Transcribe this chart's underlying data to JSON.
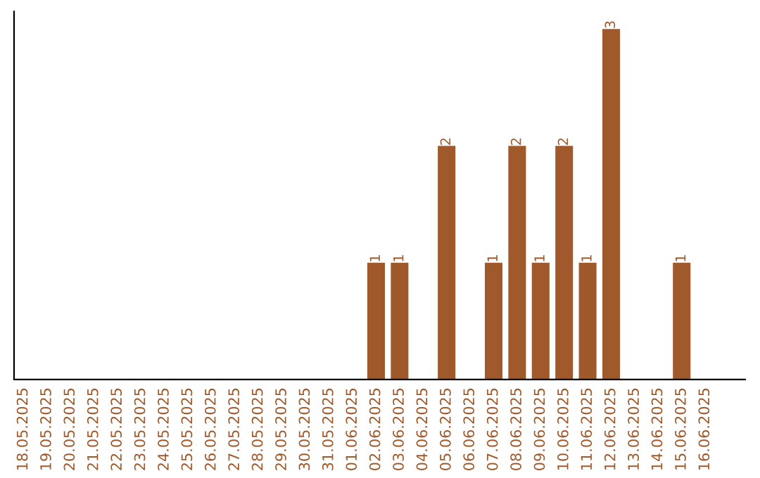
{
  "chart_data": {
    "type": "bar",
    "categories": [
      "18.05.2025",
      "19.05.2025",
      "20.05.2025",
      "21.05.2025",
      "22.05.2025",
      "23.05.2025",
      "24.05.2025",
      "25.05.2025",
      "26.05.2025",
      "27.05.2025",
      "28.05.2025",
      "29.05.2025",
      "30.05.2025",
      "31.05.2025",
      "01.06.2025",
      "02.06.2025",
      "03.06.2025",
      "04.06.2025",
      "05.06.2025",
      "06.06.2025",
      "07.06.2025",
      "08.06.2025",
      "09.06.2025",
      "10.06.2025",
      "11.06.2025",
      "12.06.2025",
      "13.06.2025",
      "14.06.2025",
      "15.06.2025",
      "16.06.2025"
    ],
    "values": [
      null,
      null,
      null,
      null,
      null,
      null,
      null,
      null,
      null,
      null,
      null,
      null,
      null,
      null,
      null,
      1,
      1,
      null,
      2,
      null,
      1,
      2,
      1,
      2,
      1,
      3,
      null,
      null,
      1,
      null
    ],
    "data_labels": true,
    "color": "#a0592a",
    "tick_labels": "x",
    "grid": false,
    "legend": false
  }
}
